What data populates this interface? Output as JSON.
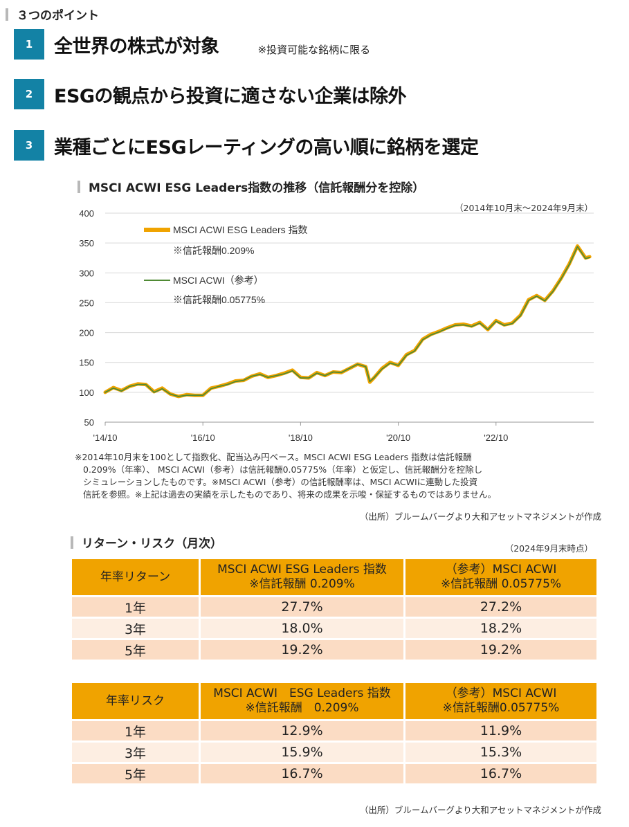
{
  "header": {
    "title": "３つのポイント"
  },
  "points": [
    {
      "num": "1",
      "text": "全世界の株式が対象",
      "note": "※投資可能な銘柄に限る"
    },
    {
      "num": "2",
      "text": "ESGの観点から投資に適さない企業は除外",
      "note": ""
    },
    {
      "num": "3",
      "text": "業種ごとにESGレーティングの高い順に銘柄を選定",
      "note": ""
    }
  ],
  "chart_section": {
    "title": "MSCI ACWI ESG Leaders指数の推移（信託報酬分を控除）",
    "period": "（2014年10月末～2024年9月末）"
  },
  "colors": {
    "accent_blue": "#1382a5",
    "orange": "#f0a300",
    "green": "#4f8a34",
    "row_dark": "#fbdcc4",
    "row_light": "#fdeee2"
  },
  "chart_data": {
    "type": "line",
    "xlabel": "",
    "ylabel": "",
    "ylim": [
      50,
      400
    ],
    "yticks": [
      50,
      100,
      150,
      200,
      250,
      300,
      350,
      400
    ],
    "ytick_labels": [
      "50",
      "100",
      "150",
      "200",
      "250",
      "300",
      "350",
      "400"
    ],
    "xticks": [
      0,
      24,
      48,
      72,
      96
    ],
    "xtick_labels": [
      "'14/10",
      "'16/10",
      "'18/10",
      "'20/10",
      "'22/10"
    ],
    "grid": true,
    "x_months_since_2014_10": [
      0,
      2,
      4,
      6,
      8,
      10,
      12,
      14,
      16,
      18,
      20,
      22,
      24,
      26,
      28,
      30,
      32,
      34,
      36,
      38,
      40,
      42,
      44,
      46,
      48,
      50,
      52,
      54,
      56,
      58,
      60,
      62,
      64,
      65,
      66,
      68,
      70,
      72,
      74,
      76,
      78,
      80,
      82,
      84,
      86,
      88,
      90,
      92,
      94,
      96,
      98,
      100,
      102,
      104,
      106,
      108,
      110,
      112,
      114,
      116,
      118,
      119
    ],
    "series": [
      {
        "name": "MSCI ACWI ESG Leaders 指数",
        "note": "※信託報酬0.209%",
        "color": "#f0a300",
        "values": [
          100,
          108,
          103,
          110,
          114,
          113,
          101,
          107,
          97,
          93,
          96,
          95,
          95,
          107,
          110,
          114,
          119,
          120,
          127,
          131,
          125,
          128,
          132,
          137,
          125,
          124,
          133,
          128,
          134,
          133,
          140,
          147,
          143,
          117,
          124,
          140,
          150,
          145,
          163,
          170,
          189,
          197,
          202,
          208,
          213,
          214,
          211,
          217,
          205,
          220,
          213,
          216,
          229,
          255,
          262,
          254,
          270,
          291,
          315,
          345,
          325,
          327
        ]
      },
      {
        "name": "MSCI ACWI（参考）",
        "note": "※信託報酬0.05775%",
        "color": "#4f8a34",
        "values": [
          100,
          107,
          102,
          110,
          113,
          113,
          100,
          106,
          97,
          93,
          95,
          95,
          95,
          106,
          110,
          113,
          118,
          120,
          127,
          130,
          125,
          128,
          131,
          136,
          124,
          124,
          132,
          128,
          134,
          133,
          140,
          147,
          143,
          118,
          124,
          139,
          149,
          145,
          162,
          169,
          188,
          196,
          201,
          207,
          212,
          213,
          210,
          216,
          205,
          219,
          212,
          215,
          228,
          254,
          261,
          253,
          269,
          290,
          314,
          344,
          324,
          326
        ]
      }
    ]
  },
  "chart_footnote": [
    "※2014年10月末を100として指数化、配当込み円ベース。MSCI ACWI ESG Leaders 指数は信託報酬",
    "0.209%（年率）、 MSCI ACWI（参考）は信託報酬0.05775%（年率）と仮定し、信託報酬分を控除し",
    "シミュレーションしたものです。※MSCI ACWI（参考）の信託報酬率は、MSCI ACWIに連動した投資",
    "信託を参照。※上記は過去の実績を示したものであり、将来の成果を示唆・保証するものではありません。"
  ],
  "chart_source": "（出所）ブルームバーグより大和アセットマネジメントが作成",
  "table_section": {
    "title": "リターン・リスク（月次）",
    "as_of": "（2024年9月末時点）"
  },
  "return_table": {
    "headers": [
      "年率リターン",
      "MSCI ACWI ESG Leaders 指数",
      "※信託報酬 0.209%",
      "（参考）MSCI ACWI",
      "※信託報酬 0.05775%"
    ],
    "rows": [
      [
        "1年",
        "27.7%",
        "27.2%"
      ],
      [
        "3年",
        "18.0%",
        "18.2%"
      ],
      [
        "5年",
        "19.2%",
        "19.2%"
      ]
    ]
  },
  "risk_table": {
    "headers": [
      "年率リスク",
      "MSCI ACWI　ESG Leaders 指数",
      "※信託報酬　0.209%",
      "（参考）MSCI ACWI",
      "※信託報酬0.05775%"
    ],
    "rows": [
      [
        "1年",
        "12.9%",
        "11.9%"
      ],
      [
        "3年",
        "15.9%",
        "15.3%"
      ],
      [
        "5年",
        "16.7%",
        "16.7%"
      ]
    ]
  },
  "table_source": "（出所）ブルームバーグより大和アセットマネジメントが作成"
}
